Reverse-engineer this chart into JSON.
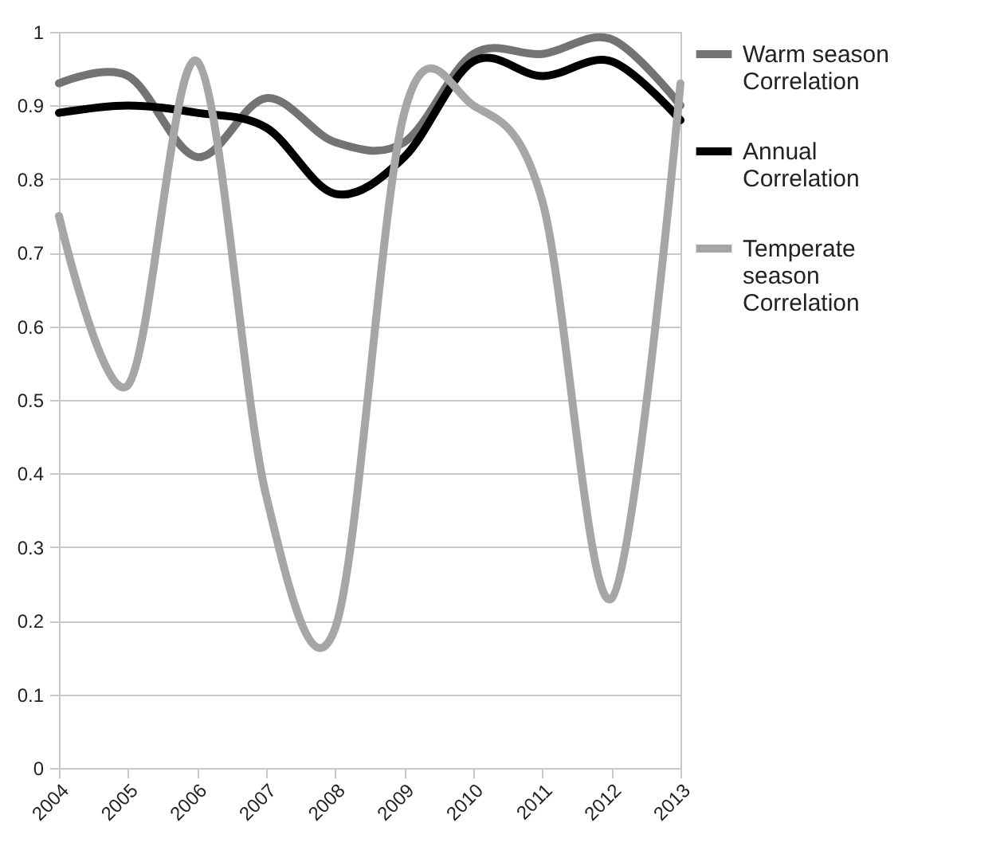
{
  "chart_data": {
    "type": "line",
    "categories": [
      "2004",
      "2005",
      "2006",
      "2007",
      "2008",
      "2009",
      "2010",
      "2011",
      "2012",
      "2013"
    ],
    "series": [
      {
        "name": "Warm season Correlation",
        "color": "#737373",
        "values": [
          0.93,
          0.94,
          0.83,
          0.91,
          0.85,
          0.85,
          0.97,
          0.97,
          0.99,
          0.9
        ]
      },
      {
        "name": "Annual Correlation",
        "color": "#000000",
        "values": [
          0.89,
          0.9,
          0.89,
          0.87,
          0.78,
          0.83,
          0.96,
          0.94,
          0.96,
          0.88
        ]
      },
      {
        "name": "Temperate season Correlation",
        "color": "#a6a6a6",
        "values": [
          0.75,
          0.52,
          0.96,
          0.37,
          0.19,
          0.89,
          0.9,
          0.77,
          0.23,
          0.93
        ]
      }
    ],
    "ylim": [
      0,
      1
    ],
    "yticks": [
      0,
      0.1,
      0.2,
      0.3,
      0.4,
      0.5,
      0.6,
      0.7,
      0.8,
      0.9,
      1
    ],
    "grid": "y",
    "legend": "right",
    "marker": "none",
    "line_style": "solid"
  }
}
